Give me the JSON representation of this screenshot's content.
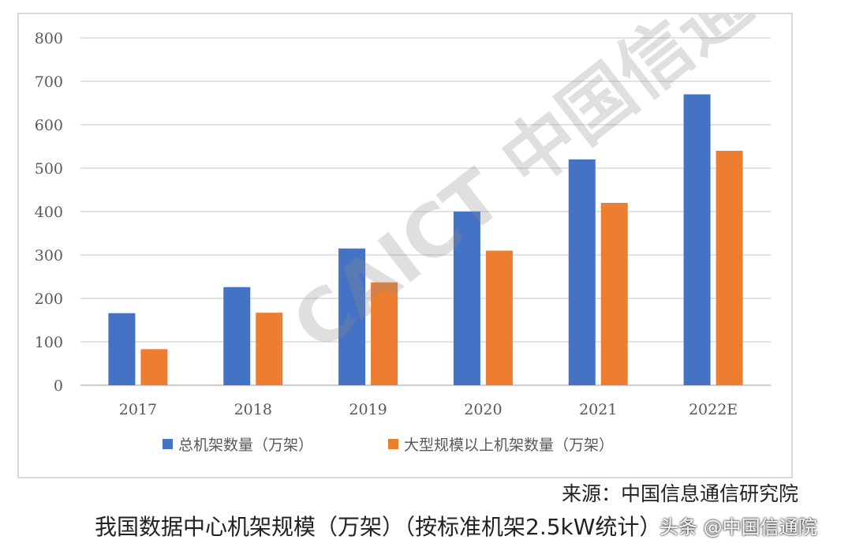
{
  "chart_data": {
    "type": "bar",
    "categories": [
      "2017",
      "2018",
      "2019",
      "2020",
      "2021",
      "2022E"
    ],
    "series": [
      {
        "name": "总机架数量（万架）",
        "values": [
          166,
          226,
          315,
          400,
          520,
          670
        ],
        "color": "#4472C4"
      },
      {
        "name": "大型规模以上机架数量（万架）",
        "values": [
          83,
          167,
          237,
          310,
          420,
          540
        ],
        "color": "#ED7D31"
      }
    ],
    "ylim": [
      0,
      800
    ],
    "yticks": [
      0,
      100,
      200,
      300,
      400,
      500,
      600,
      700,
      800
    ],
    "grid": true,
    "legend_position": "bottom"
  },
  "source_text": "来源：中国信息通信研究院",
  "caption_text": "我国数据中心机架规模（万架）（按标准机架2.5kW统计）",
  "credit_text": "头条 @中国信通院",
  "watermark_text": "CAICT 中国信通院"
}
